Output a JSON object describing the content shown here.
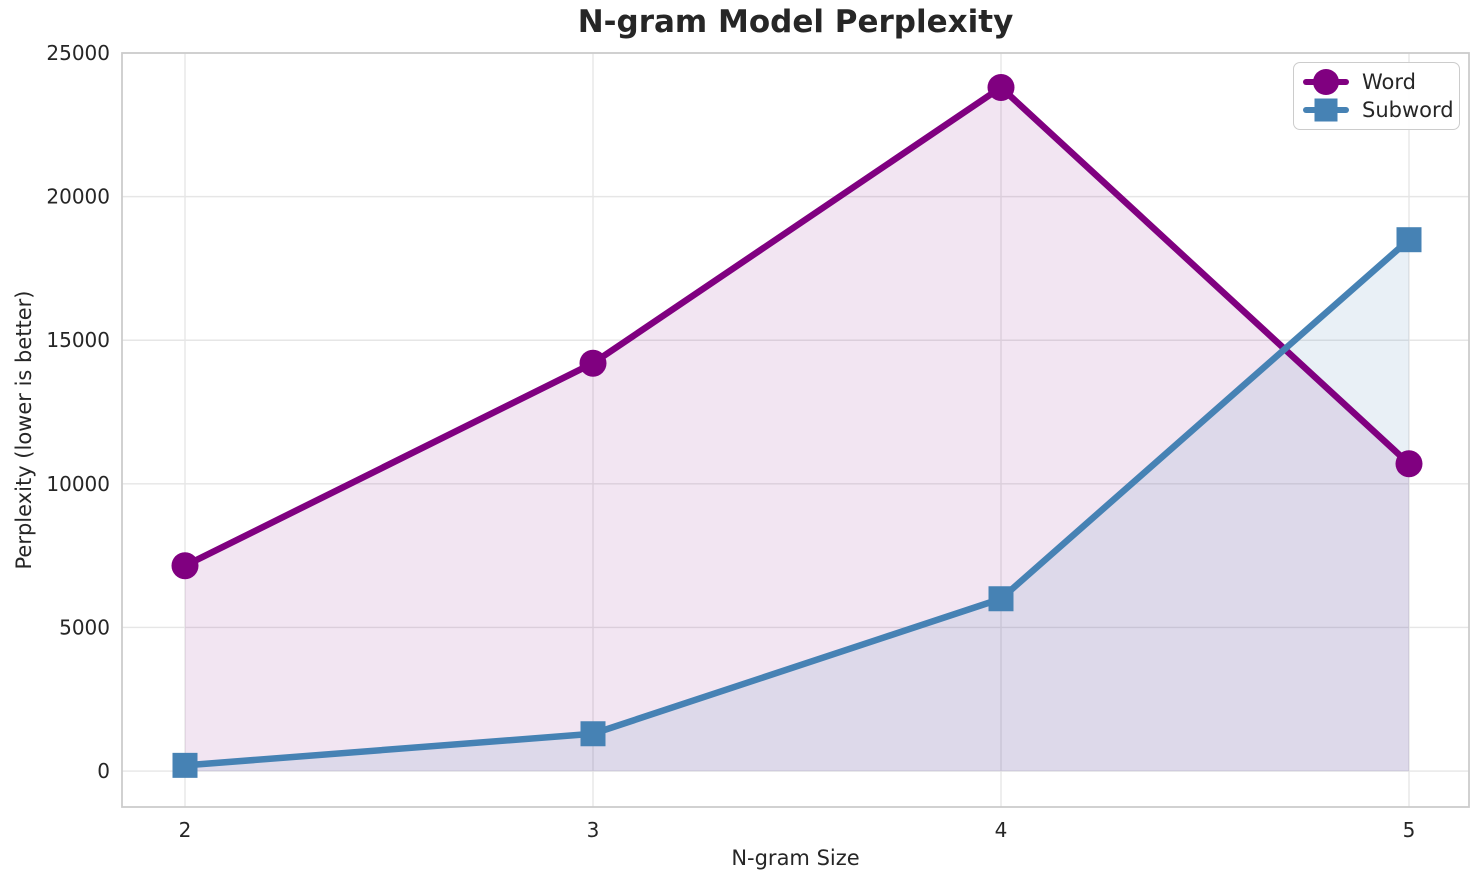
{
  "chart_data": {
    "type": "line",
    "title": "N-gram Model Perplexity",
    "xlabel": "N-gram Size",
    "ylabel": "Perplexity (lower is better)",
    "x": [
      2,
      3,
      4,
      5
    ],
    "x_tick_labels": [
      "2",
      "3",
      "4",
      "5"
    ],
    "y_ticks": [
      0,
      5000,
      10000,
      15000,
      20000,
      25000
    ],
    "ylim": [
      -1250,
      25000
    ],
    "grid": true,
    "legend_position": "upper right",
    "series": [
      {
        "name": "Word",
        "marker": "circle",
        "color": "#800080",
        "fill_alpha": 0.1,
        "values": [
          7150,
          14200,
          23800,
          10700
        ]
      },
      {
        "name": "Subword",
        "marker": "square",
        "color": "#4682B4",
        "fill_alpha": 0.12,
        "values": [
          200,
          1300,
          6000,
          18500
        ]
      }
    ],
    "colors": {
      "grid": "#e6e6e6",
      "spine": "#cccccc",
      "text": "#262626",
      "background": "#ffffff"
    }
  }
}
